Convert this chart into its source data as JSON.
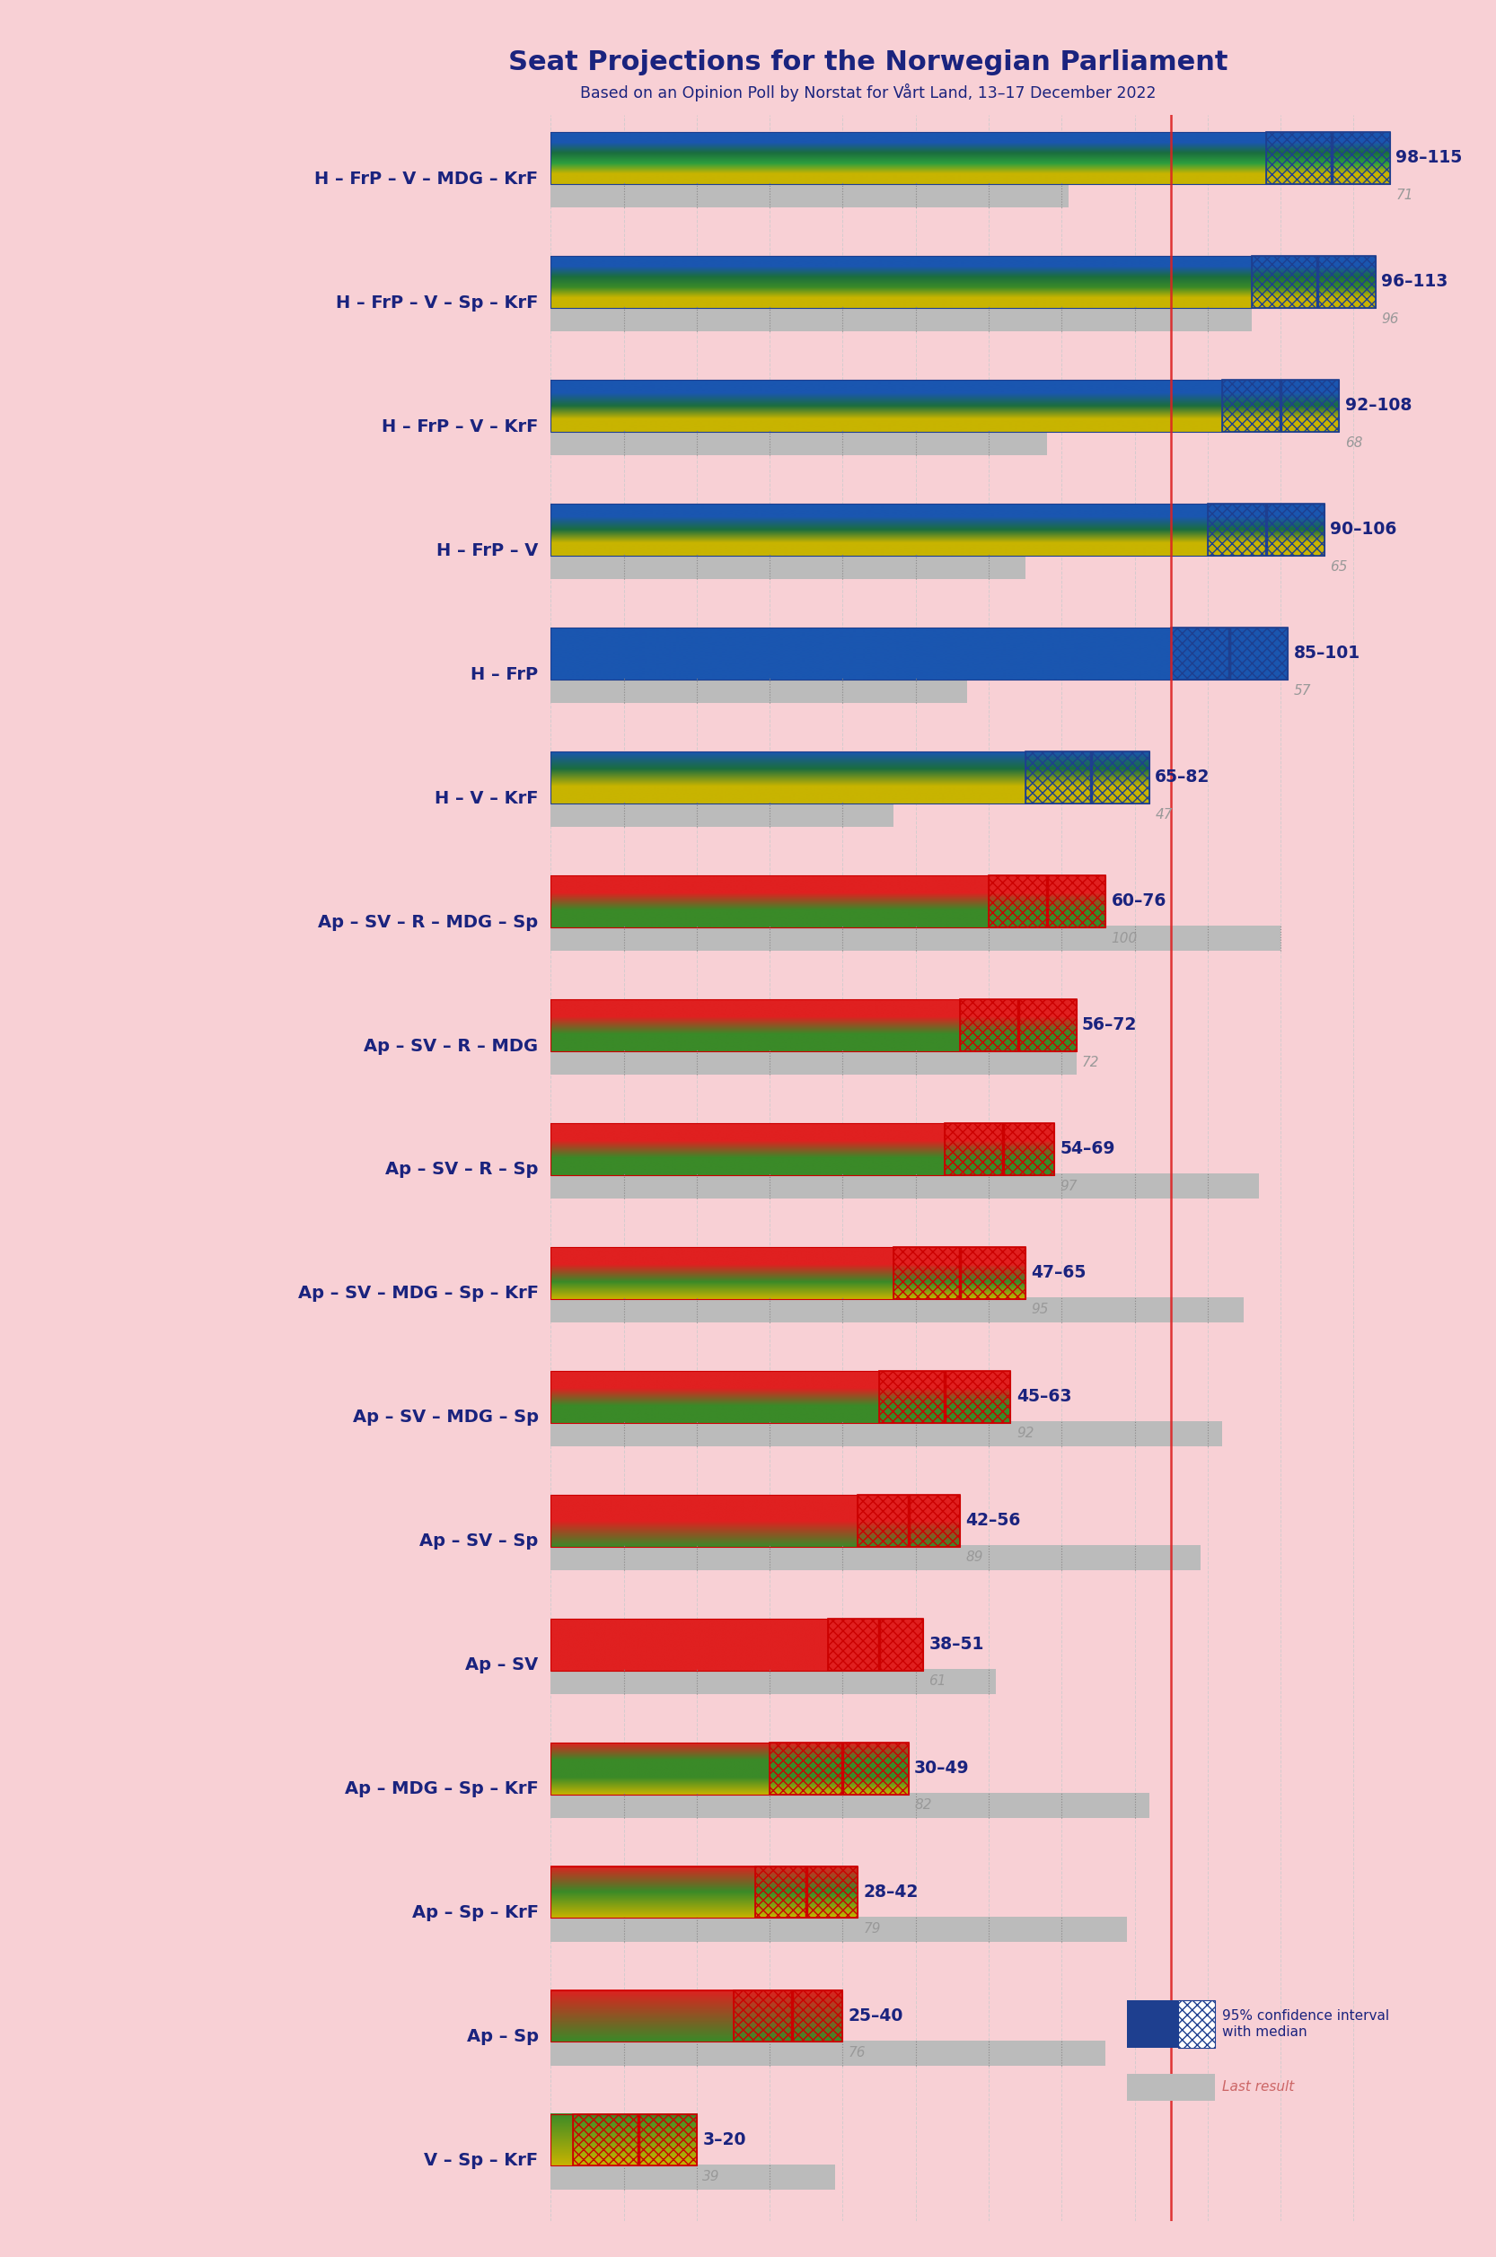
{
  "title": "Seat Projections for the Norwegian Parliament",
  "subtitle": "Based on an Opinion Poll by Norstat for Vårt Land, 13–17 December 2022",
  "background_color": "#f8d0d5",
  "coalitions": [
    {
      "name": "H – FrP – V – MDG – KrF",
      "ci_low": 98,
      "ci_high": 115,
      "median": 107,
      "last": 71,
      "side": "right",
      "underline": false,
      "grad_colors": [
        "#1a56b0",
        "#1a56b0",
        "#1b6e3e",
        "#2d9e3e",
        "#c8b400",
        "#c8b400"
      ]
    },
    {
      "name": "H – FrP – V – Sp – KrF",
      "ci_low": 96,
      "ci_high": 113,
      "median": 105,
      "last": 96,
      "side": "right",
      "underline": false,
      "grad_colors": [
        "#1a56b0",
        "#1a56b0",
        "#1b6e3e",
        "#3a8a28",
        "#c8b400",
        "#c8b400"
      ]
    },
    {
      "name": "H – FrP – V – KrF",
      "ci_low": 92,
      "ci_high": 108,
      "median": 100,
      "last": 68,
      "side": "right",
      "underline": false,
      "grad_colors": [
        "#1a56b0",
        "#1a56b0",
        "#1b6e3e",
        "#c8b400",
        "#c8b400"
      ]
    },
    {
      "name": "H – FrP – V",
      "ci_low": 90,
      "ci_high": 106,
      "median": 98,
      "last": 65,
      "side": "right",
      "underline": false,
      "grad_colors": [
        "#1a56b0",
        "#1a56b0",
        "#1b6e3e",
        "#c8b400",
        "#c8b400"
      ]
    },
    {
      "name": "H – FrP",
      "ci_low": 85,
      "ci_high": 101,
      "median": 93,
      "last": 57,
      "side": "right",
      "underline": false,
      "grad_colors": [
        "#1a56b0",
        "#1a56b0",
        "#1a56b0"
      ]
    },
    {
      "name": "H – V – KrF",
      "ci_low": 65,
      "ci_high": 82,
      "median": 74,
      "last": 47,
      "side": "right",
      "underline": false,
      "grad_colors": [
        "#1a56b0",
        "#1b6e3e",
        "#c8b400",
        "#c8b400"
      ]
    },
    {
      "name": "Ap – SV – R – MDG – Sp",
      "ci_low": 60,
      "ci_high": 76,
      "median": 68,
      "last": 100,
      "side": "left",
      "underline": false,
      "grad_colors": [
        "#e02020",
        "#e02020",
        "#3a8a28",
        "#3a8a28"
      ]
    },
    {
      "name": "Ap – SV – R – MDG",
      "ci_low": 56,
      "ci_high": 72,
      "median": 64,
      "last": 72,
      "side": "left",
      "underline": false,
      "grad_colors": [
        "#e02020",
        "#e02020",
        "#3a8a28",
        "#3a8a28"
      ]
    },
    {
      "name": "Ap – SV – R – Sp",
      "ci_low": 54,
      "ci_high": 69,
      "median": 62,
      "last": 97,
      "side": "left",
      "underline": false,
      "grad_colors": [
        "#e02020",
        "#e02020",
        "#3a8a28",
        "#3a8a28"
      ]
    },
    {
      "name": "Ap – SV – MDG – Sp – KrF",
      "ci_low": 47,
      "ci_high": 65,
      "median": 56,
      "last": 95,
      "side": "left",
      "underline": false,
      "grad_colors": [
        "#e02020",
        "#e02020",
        "#3a8a28",
        "#c8b400"
      ]
    },
    {
      "name": "Ap – SV – MDG – Sp",
      "ci_low": 45,
      "ci_high": 63,
      "median": 54,
      "last": 92,
      "side": "left",
      "underline": false,
      "grad_colors": [
        "#e02020",
        "#e02020",
        "#3a8a28",
        "#3a8a28"
      ]
    },
    {
      "name": "Ap – SV – Sp",
      "ci_low": 42,
      "ci_high": 56,
      "median": 49,
      "last": 89,
      "side": "left",
      "underline": false,
      "grad_colors": [
        "#e02020",
        "#e02020",
        "#3a8a28"
      ]
    },
    {
      "name": "Ap – SV",
      "ci_low": 38,
      "ci_high": 51,
      "median": 45,
      "last": 61,
      "side": "left",
      "underline": true,
      "grad_colors": [
        "#e02020",
        "#e02020"
      ]
    },
    {
      "name": "Ap – MDG – Sp – KrF",
      "ci_low": 30,
      "ci_high": 49,
      "median": 40,
      "last": 82,
      "side": "left",
      "underline": false,
      "grad_colors": [
        "#e02020",
        "#3a8a28",
        "#3a8a28",
        "#c8b400"
      ]
    },
    {
      "name": "Ap – Sp – KrF",
      "ci_low": 28,
      "ci_high": 42,
      "median": 35,
      "last": 79,
      "side": "left",
      "underline": false,
      "grad_colors": [
        "#e02020",
        "#3a8a28",
        "#c8b400"
      ]
    },
    {
      "name": "Ap – Sp",
      "ci_low": 25,
      "ci_high": 40,
      "median": 33,
      "last": 76,
      "side": "left",
      "underline": false,
      "grad_colors": [
        "#e02020",
        "#3a8a28"
      ]
    },
    {
      "name": "V – Sp – KrF",
      "ci_low": 3,
      "ci_high": 20,
      "median": 12,
      "last": 39,
      "side": "left",
      "underline": false,
      "grad_colors": [
        "#3a8a28",
        "#c8b400"
      ]
    }
  ],
  "majority": 85,
  "x_max": 120,
  "label_color": "#1a237e",
  "majority_line_color": "#dd2222",
  "last_bar_color": "#bbbbbb",
  "grid_color": "#cccccc"
}
